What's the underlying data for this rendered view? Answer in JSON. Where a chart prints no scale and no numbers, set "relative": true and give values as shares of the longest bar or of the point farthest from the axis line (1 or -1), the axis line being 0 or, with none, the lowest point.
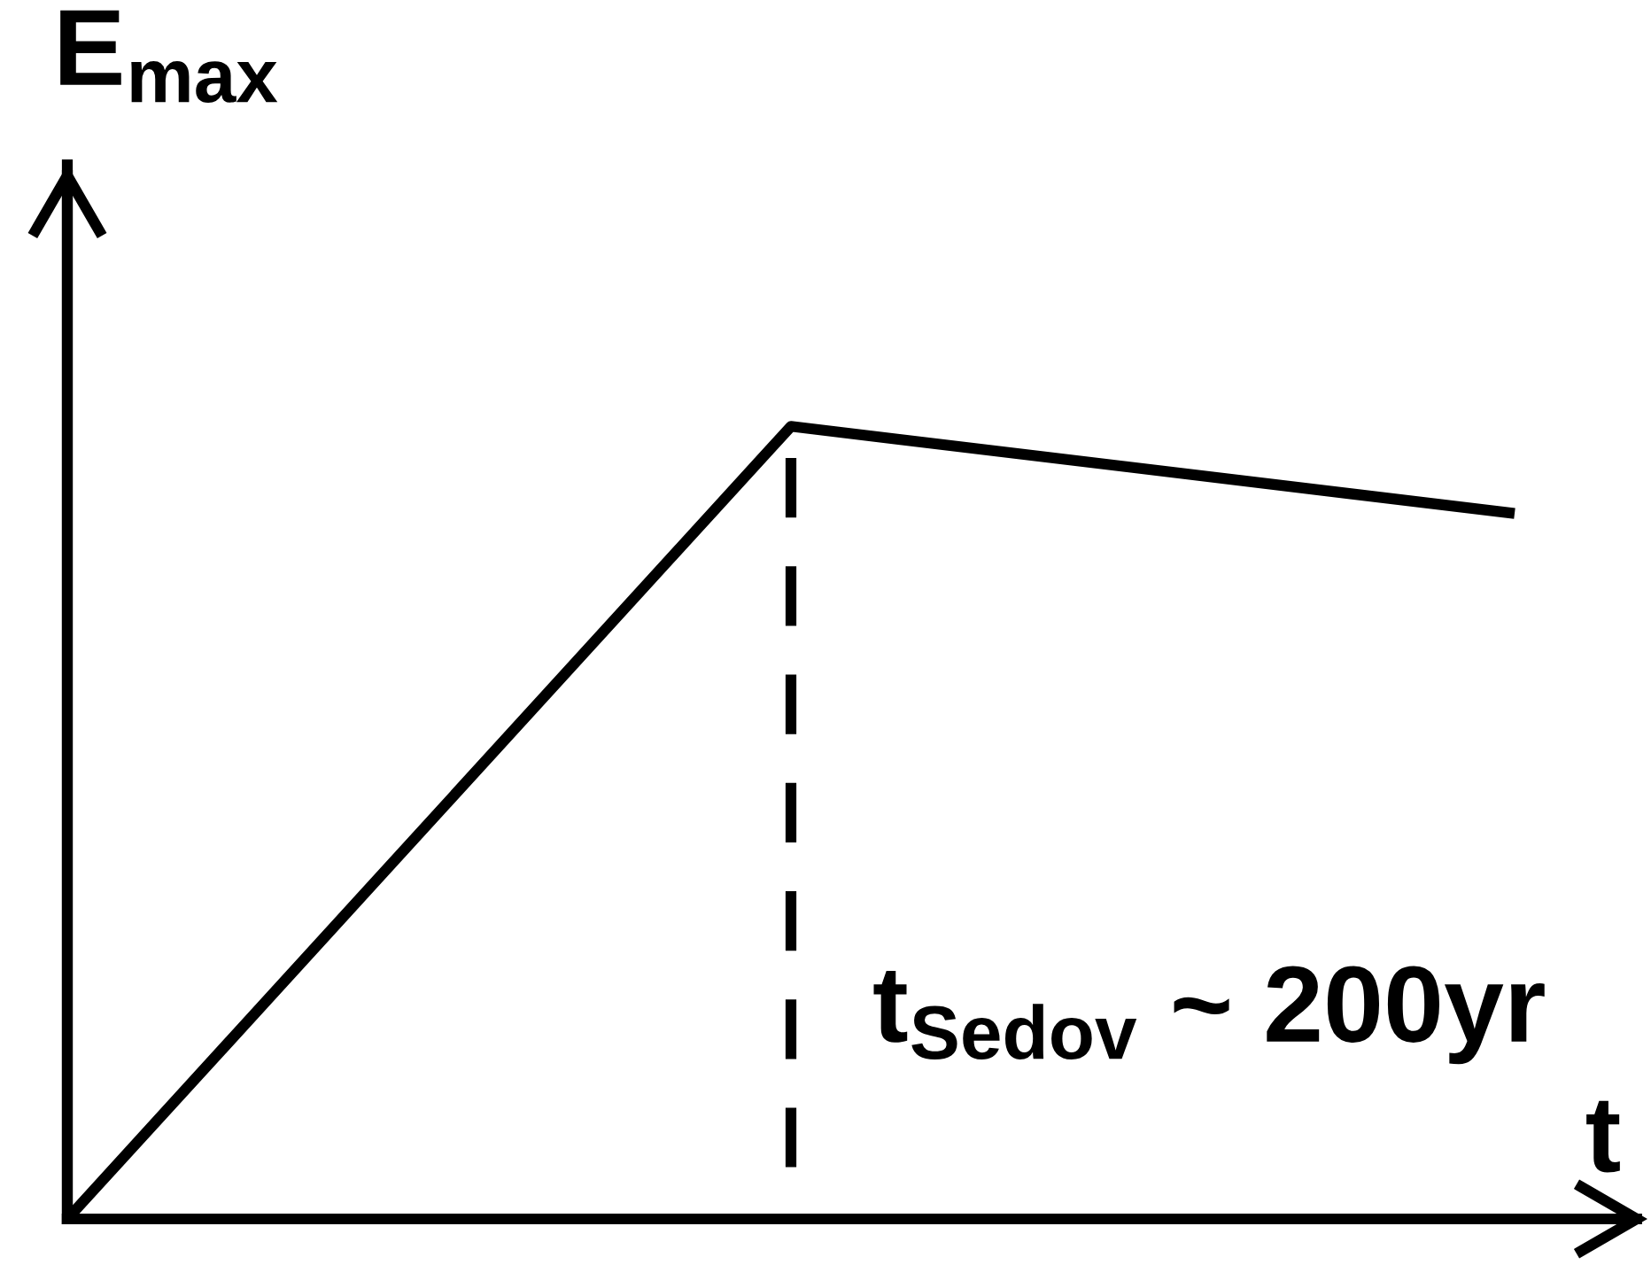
{
  "chart_data": {
    "type": "line",
    "xlabel": "t",
    "ylabel": "E$_{max}$",
    "relative": true,
    "categories": [
      null,
      null,
      null
    ],
    "series": [
      {
        "color": "#000000",
        "values": [
          0,
          1,
          0.89
        ]
      }
    ],
    "annotations": [
      "t$_{Sedov}$ ~ 200yr"
    ]
  }
}
